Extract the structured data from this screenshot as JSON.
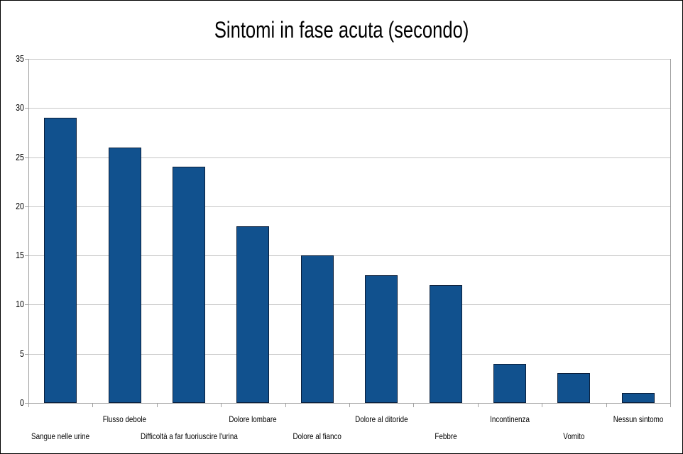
{
  "window": {
    "background_color": "#ffffff",
    "border_color": "#000000"
  },
  "chart_data": {
    "type": "bar",
    "title": "Sintomi in fase acuta (secondo)",
    "categories": [
      "Sangue nelle urine",
      "Flusso debole",
      "Difficoltà a far fuoriuscire l'urina",
      "Dolore lombare",
      "Dolore al fianco",
      "Dolore al ditoride",
      "Febbre",
      "Incontinenza",
      "Vomito",
      "Nessun sintomo"
    ],
    "values": [
      29,
      26,
      24,
      18,
      15,
      13,
      12,
      4,
      3,
      1
    ],
    "xlabel": "",
    "ylabel": "",
    "ylim": [
      0,
      35
    ],
    "yticks": [
      0,
      5,
      10,
      15,
      20,
      25,
      30,
      35
    ],
    "grid": true,
    "legend": "none",
    "bar_color": "#11518E",
    "bar_border_color": "#0A1F3C",
    "grid_color": "#c6c6c6",
    "axis_color": "#a0a0a0",
    "text_color": "#000000"
  }
}
